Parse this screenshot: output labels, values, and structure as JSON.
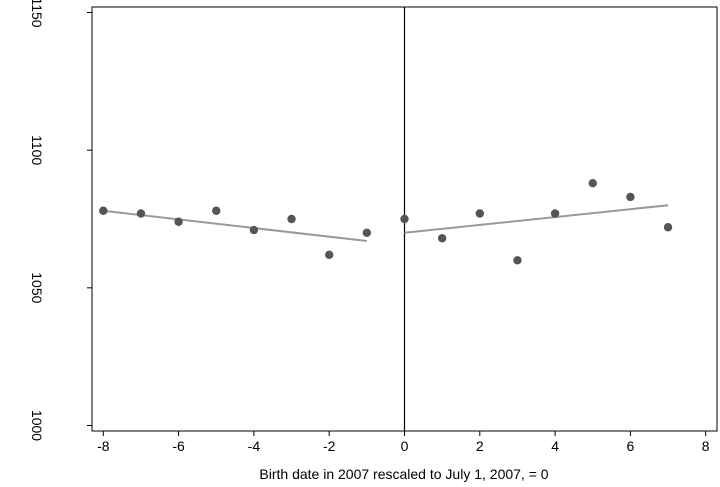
{
  "chart_data": {
    "type": "scatter",
    "title": "",
    "xlabel": "Birth date in 2007 rescaled to July 1, 2007, = 0",
    "ylabel": "",
    "xlim": [
      -8.3,
      8.3
    ],
    "ylim": [
      998,
      1152
    ],
    "x_ticks": [
      "-8",
      "-6",
      "-4",
      "-2",
      "0",
      "2",
      "4",
      "6",
      "8"
    ],
    "y_ticks": [
      "1000",
      "1050",
      "1100",
      "1150"
    ],
    "grid": false,
    "cutoff_x": 0,
    "points": [
      {
        "x": -8,
        "y": 1078
      },
      {
        "x": -7,
        "y": 1077
      },
      {
        "x": -6,
        "y": 1074
      },
      {
        "x": -5,
        "y": 1078
      },
      {
        "x": -4,
        "y": 1071
      },
      {
        "x": -3,
        "y": 1075
      },
      {
        "x": -2,
        "y": 1062
      },
      {
        "x": -1,
        "y": 1070
      },
      {
        "x": 0,
        "y": 1075
      },
      {
        "x": 1,
        "y": 1068
      },
      {
        "x": 2,
        "y": 1077
      },
      {
        "x": 3,
        "y": 1060
      },
      {
        "x": 4,
        "y": 1077
      },
      {
        "x": 5,
        "y": 1088
      },
      {
        "x": 6,
        "y": 1083
      },
      {
        "x": 7,
        "y": 1072
      }
    ],
    "fit_lines": [
      {
        "x": [
          -8,
          -1
        ],
        "y": [
          1078,
          1067
        ]
      },
      {
        "x": [
          0,
          7
        ],
        "y": [
          1070,
          1080
        ]
      }
    ],
    "colors": {
      "points": "#555555",
      "fit": "#999999",
      "axis": "#000000"
    }
  }
}
